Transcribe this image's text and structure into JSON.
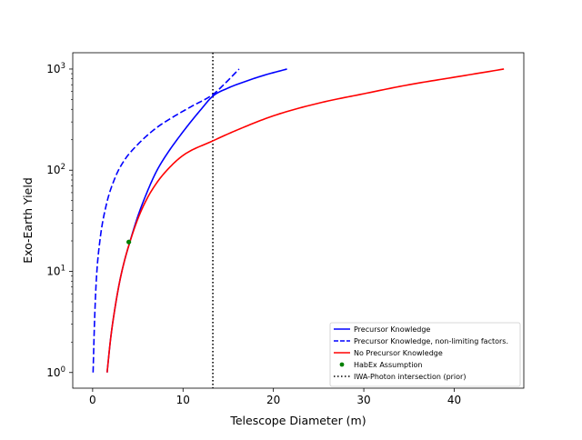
{
  "chart_data": {
    "type": "line",
    "xlabel": "Telescope Diameter (m)",
    "ylabel": "Exo-Earth Yield",
    "xlim": [
      -2.2,
      47.7
    ],
    "ylim": [
      0.7,
      1450
    ],
    "yscale": "log",
    "grid": false,
    "legend_position": "lower right",
    "x_ticks": [
      {
        "value": 0,
        "label": "0"
      },
      {
        "value": 10,
        "label": "10"
      },
      {
        "value": 20,
        "label": "20"
      },
      {
        "value": 30,
        "label": "30"
      },
      {
        "value": 40,
        "label": "40"
      }
    ],
    "y_ticks": [
      {
        "value": 1,
        "base": "10",
        "exp": "0"
      },
      {
        "value": 10,
        "base": "10",
        "exp": "1"
      },
      {
        "value": 100,
        "base": "10",
        "exp": "2"
      },
      {
        "value": 1000,
        "base": "10",
        "exp": "3"
      }
    ],
    "series": [
      {
        "name": "Precursor Knowledge",
        "color": "#0000ff",
        "style": "solid",
        "points": [
          [
            1.6,
            1
          ],
          [
            2.0,
            2.2
          ],
          [
            2.5,
            4.5
          ],
          [
            3.0,
            8
          ],
          [
            3.5,
            12.5
          ],
          [
            4.0,
            18
          ],
          [
            5,
            35
          ],
          [
            6,
            60
          ],
          [
            7,
            95
          ],
          [
            8,
            135
          ],
          [
            10,
            240
          ],
          [
            12,
            400
          ],
          [
            13.3,
            540
          ],
          [
            15,
            650
          ],
          [
            17,
            760
          ],
          [
            19,
            870
          ],
          [
            21.5,
            1000
          ]
        ]
      },
      {
        "name": "Precursor Knowledge, non-limiting factors.",
        "color": "#0000ff",
        "style": "dashed",
        "points": [
          [
            0.05,
            1
          ],
          [
            0.2,
            3
          ],
          [
            0.4,
            8
          ],
          [
            0.8,
            20
          ],
          [
            1.5,
            45
          ],
          [
            2.5,
            85
          ],
          [
            3.5,
            125
          ],
          [
            5,
            180
          ],
          [
            7,
            260
          ],
          [
            9,
            340
          ],
          [
            11,
            430
          ],
          [
            13.3,
            560
          ],
          [
            14.5,
            700
          ],
          [
            16.2,
            1000
          ]
        ]
      },
      {
        "name": "No Precursor Knowledge",
        "color": "#ff0000",
        "style": "solid",
        "points": [
          [
            1.6,
            1
          ],
          [
            2.0,
            2.2
          ],
          [
            2.5,
            4.5
          ],
          [
            3.0,
            8
          ],
          [
            3.5,
            12.5
          ],
          [
            4.0,
            18
          ],
          [
            5,
            33
          ],
          [
            6,
            52
          ],
          [
            7,
            73
          ],
          [
            8,
            95
          ],
          [
            10,
            140
          ],
          [
            13.3,
            195
          ],
          [
            16,
            250
          ],
          [
            20,
            345
          ],
          [
            25,
            460
          ],
          [
            30,
            570
          ],
          [
            35,
            700
          ],
          [
            40,
            830
          ],
          [
            45.5,
            1000
          ]
        ]
      }
    ],
    "points": [
      {
        "name": "HabEx Assumption",
        "color": "#008000",
        "x": 4.0,
        "y": 19.5
      }
    ],
    "vlines": [
      {
        "name": "IWA-Photon intersection (prior)",
        "color": "#000000",
        "style": "dotted",
        "x": 13.3
      }
    ]
  }
}
